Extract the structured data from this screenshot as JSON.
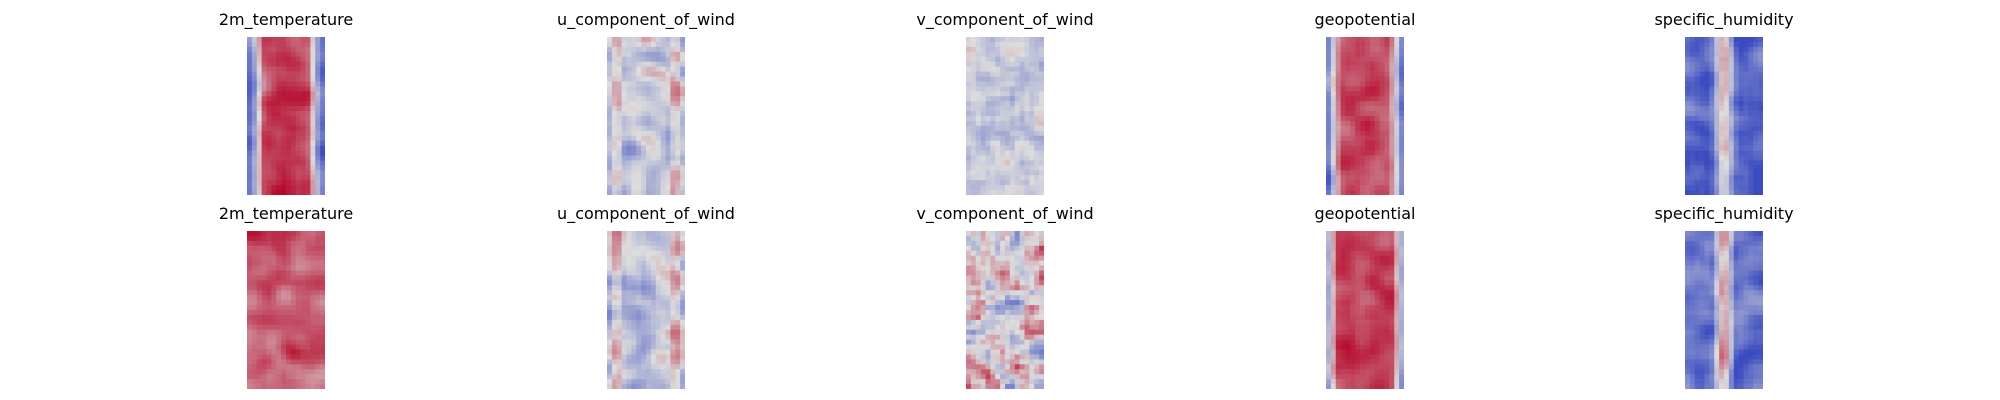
{
  "chart_data": {
    "type": "heatmap",
    "colormap": "coolwarm",
    "colors": {
      "cold": "#3b4cc0",
      "neutral": "#dddddd",
      "warm": "#b40426"
    },
    "axes_visible": false,
    "rows": [
      {
        "panels": [
          {
            "title": "2m_temperature",
            "pattern": "center_band",
            "intensity": 0.72,
            "band_width": 0.55
          },
          {
            "title": "u_component_of_wind",
            "pattern": "edge_streaks",
            "intensity": 0.45,
            "band_width": 0.2
          },
          {
            "title": "v_component_of_wind",
            "pattern": "weak_noise",
            "intensity": 0.28,
            "band_width": 0.2
          },
          {
            "title": "geopotential",
            "pattern": "center_band",
            "intensity": 0.68,
            "band_width": 0.62
          },
          {
            "title": "specific_humidity",
            "pattern": "cold_filament",
            "intensity": 0.85,
            "band_width": 0.35
          }
        ]
      },
      {
        "panels": [
          {
            "title": "2m_temperature",
            "pattern": "warm_field",
            "intensity": 0.7,
            "band_width": 0.9
          },
          {
            "title": "u_component_of_wind",
            "pattern": "edge_streaks",
            "intensity": 0.5,
            "band_width": 0.2
          },
          {
            "title": "v_component_of_wind",
            "pattern": "strong_noise",
            "intensity": 0.62,
            "band_width": 0.2
          },
          {
            "title": "geopotential",
            "pattern": "center_band",
            "intensity": 0.72,
            "band_width": 0.7
          },
          {
            "title": "specific_humidity",
            "pattern": "cold_filament",
            "intensity": 0.7,
            "band_width": 0.3
          }
        ]
      }
    ]
  }
}
